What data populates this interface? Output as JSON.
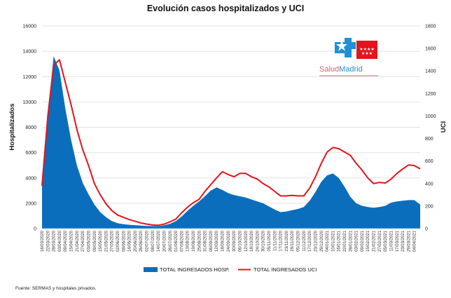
{
  "chart_data": {
    "type": "area+line",
    "title": "Evolución casos hospitalizados y UCI",
    "ylabel_left": "Hospitalizados",
    "ylabel_right": "UCI",
    "ylim_left": [
      0,
      16000
    ],
    "ylim_right": [
      0,
      1800
    ],
    "yticks_left": [
      0,
      2000,
      4000,
      6000,
      8000,
      10000,
      12000,
      14000,
      16000
    ],
    "yticks_right": [
      0,
      200,
      400,
      600,
      800,
      1000,
      1200,
      1400,
      1600,
      1800
    ],
    "grid": true,
    "legend_position": "bottom",
    "x_tick_labels": [
      "16/03/2020",
      "22/03/2020",
      "28/03/2020",
      "03/04/2020",
      "09/04/2020",
      "15/04/2020",
      "21/04/2020",
      "27/04/2020",
      "03/05/2020",
      "09/05/2020",
      "15/05/2020",
      "21/05/2020",
      "27/05/2020",
      "02/06/2020",
      "08/06/2020",
      "14/06/2020",
      "20/06/2020",
      "26/06/2020",
      "02/07/2020",
      "08/07/2020",
      "14/07/2020",
      "20/07/2020",
      "26/07/2020",
      "01/08/2020",
      "07/08/2020",
      "13/08/2020",
      "19/08/2020",
      "25/08/2020",
      "31/08/2020",
      "06/09/2020",
      "12/09/2020",
      "18/09/2020",
      "24/09/2020",
      "30/09/2020",
      "06/10/2020",
      "12/10/2020",
      "18/10/2020",
      "24/10/2020",
      "30/10/2020",
      "05/11/2020",
      "11/11/2020",
      "17/11/2020",
      "23/11/2020",
      "29/11/2020",
      "05/12/2020",
      "11/12/2020",
      "17/12/2020",
      "23/12/2020",
      "29/12/2020",
      "04/01/2021",
      "10/01/2021",
      "16/01/2021",
      "22/01/2021",
      "28/01/2021",
      "03/02/2021",
      "09/02/2021",
      "15/02/2021",
      "21/02/2021",
      "27/02/2021",
      "05/03/2021",
      "11/03/2021",
      "17/03/2021",
      "23/03/2021",
      "29/03/2021",
      "04/04/2021"
    ],
    "x_end": "10/04/2021",
    "series": [
      {
        "name": "TOTAL INGRESADOS HOSP.",
        "type": "area",
        "axis": "left",
        "color": "#0a6ebd",
        "values": [
          3500,
          9000,
          13600,
          12500,
          9500,
          7000,
          5000,
          3600,
          2700,
          1900,
          1300,
          900,
          600,
          420,
          350,
          300,
          260,
          230,
          210,
          200,
          200,
          260,
          380,
          600,
          950,
          1400,
          1800,
          2150,
          2550,
          3000,
          3250,
          3050,
          2800,
          2650,
          2550,
          2450,
          2300,
          2150,
          2000,
          1750,
          1500,
          1300,
          1350,
          1450,
          1550,
          1700,
          2200,
          2900,
          3700,
          4200,
          4350,
          4000,
          3300,
          2500,
          2000,
          1800,
          1700,
          1650,
          1700,
          1800,
          2050,
          2150,
          2200,
          2250,
          2250,
          1900
        ]
      },
      {
        "name": "TOTAL INGRESADOS UCI",
        "type": "line",
        "axis": "right",
        "color": "#e3141b",
        "values": [
          380,
          1000,
          1450,
          1500,
          1300,
          1100,
          880,
          700,
          560,
          400,
          300,
          220,
          160,
          120,
          100,
          80,
          65,
          50,
          40,
          32,
          30,
          40,
          60,
          85,
          140,
          190,
          230,
          260,
          330,
          390,
          450,
          505,
          480,
          460,
          490,
          490,
          460,
          440,
          400,
          370,
          330,
          290,
          290,
          295,
          290,
          290,
          360,
          460,
          580,
          680,
          720,
          710,
          680,
          650,
          580,
          520,
          450,
          400,
          410,
          405,
          440,
          490,
          530,
          565,
          560,
          530
        ]
      }
    ]
  },
  "logo": {
    "text": "SaludMadrid",
    "colors": {
      "blue": "#1f8fd6",
      "red": "#e3141b"
    }
  },
  "source": "Fuente: SERMAS y hospitales privados."
}
